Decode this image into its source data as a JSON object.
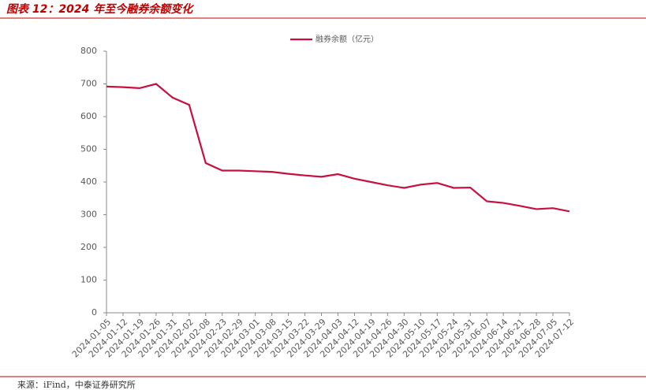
{
  "chart_data": {
    "type": "line",
    "title": "图表 12：2024 年至今融券余额变化",
    "source": "来源：iFind，中泰证券研究所",
    "categories": [
      "2024-01-05",
      "2024-01-12",
      "2024-01-19",
      "2024-01-26",
      "2024-01-31",
      "2024-02-02",
      "2024-02-08",
      "2024-02-23",
      "2024-02-29",
      "2024-03-01",
      "2024-03-08",
      "2024-03-15",
      "2024-03-22",
      "2024-03-29",
      "2024-04-03",
      "2024-04-12",
      "2024-04-19",
      "2024-04-26",
      "2024-04-30",
      "2024-05-10",
      "2024-05-17",
      "2024-05-24",
      "2024-05-31",
      "2024-06-07",
      "2024-06-14",
      "2024-06-21",
      "2024-06-28",
      "2024-07-05",
      "2024-07-12"
    ],
    "series": [
      {
        "name": "融券余额（亿元）",
        "color": "#c8103e",
        "values": [
          692,
          690,
          687,
          700,
          658,
          636,
          458,
          435,
          435,
          433,
          431,
          425,
          420,
          416,
          424,
          410,
          400,
          390,
          382,
          392,
          397,
          382,
          383,
          341,
          336,
          327,
          317,
          320,
          310
        ]
      }
    ],
    "ylim": [
      0,
      800
    ],
    "yticks": [
      0,
      100,
      200,
      300,
      400,
      500,
      600,
      700,
      800
    ]
  }
}
